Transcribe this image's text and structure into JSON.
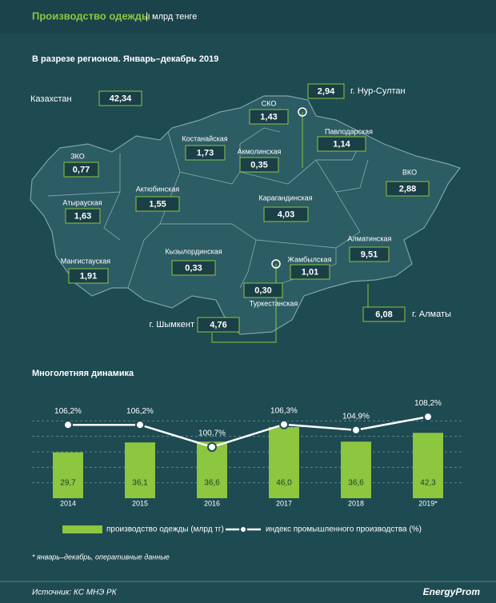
{
  "header": {
    "title": "Производство одежды",
    "unit": "млрд тенге"
  },
  "map": {
    "subtitle": "В разрезе регионов. Январь–декабрь  2019",
    "regions": [
      {
        "name": "Казахстан",
        "value": "42,34"
      },
      {
        "name": "г. Нур-Султан",
        "value": "2,94"
      },
      {
        "name": "СКО",
        "value": "1,43"
      },
      {
        "name": "Павлодарская",
        "value": "1,14"
      },
      {
        "name": "Костанайская",
        "value": "1,73"
      },
      {
        "name": "Акмолинская",
        "value": "0,35"
      },
      {
        "name": "ЗКО",
        "value": "0,77"
      },
      {
        "name": "ВКО",
        "value": "2,88"
      },
      {
        "name": "Актюбинская",
        "value": "1,55"
      },
      {
        "name": "Атырауская",
        "value": "1,63"
      },
      {
        "name": "Карагандинская",
        "value": "4,03"
      },
      {
        "name": "Кызылординская",
        "value": "0,33"
      },
      {
        "name": "Алматинская",
        "value": "9,51"
      },
      {
        "name": "Мангистауская",
        "value": "1,91"
      },
      {
        "name": "Жамбылская",
        "value": "1,01"
      },
      {
        "name": "г. Шымкент",
        "value": "4,76"
      },
      {
        "name": "Туркестанская",
        "value": "0,30"
      },
      {
        "name": "г. Алматы",
        "value": "6,08"
      }
    ]
  },
  "chart_data": {
    "type": "bar",
    "title": "Многолетняя  динамика",
    "categories": [
      "2014",
      "2015",
      "2016",
      "2017",
      "2018",
      "2019*"
    ],
    "series": [
      {
        "name": "производство одежды (млрд тг)",
        "color": "#8dc63f",
        "values": [
          29.7,
          36.1,
          36.6,
          46.0,
          36.6,
          42.3
        ],
        "value_labels": [
          "29,7",
          "36,1",
          "36,6",
          "46,0",
          "36,6",
          "42,3"
        ]
      },
      {
        "name": "индекс промышленного производства (%)",
        "type": "line",
        "axis": "y2",
        "color": "#ffffff",
        "values": [
          106.2,
          106.2,
          100.7,
          106.3,
          104.9,
          108.2
        ],
        "value_labels": [
          "106,2%",
          "106,2%",
          "100,7%",
          "106,3%",
          "104,9%",
          "108,2%"
        ]
      }
    ],
    "ylim": [
      0,
      60
    ],
    "yticks": [
      10,
      20,
      30,
      40,
      50
    ],
    "y2lim": [
      88,
      111
    ],
    "grid": true
  },
  "footnote": "* январь–декабрь, оперативные данные",
  "source": "Источник: КС МНЭ РК",
  "logo": "EnergyProm"
}
